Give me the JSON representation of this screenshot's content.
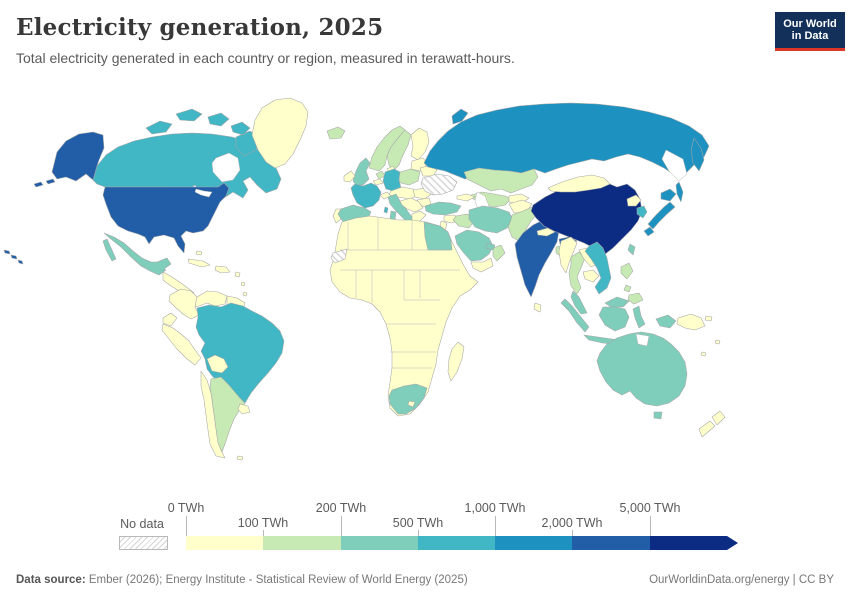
{
  "header": {
    "title": "Electricity generation, 2025",
    "subtitle": "Total electricity generated in each country or region, measured in terawatt-hours.",
    "logo": {
      "line1": "Our World",
      "line2": "in Data"
    },
    "logo_colors": {
      "navy": "#12305a",
      "red": "#dc3626"
    }
  },
  "legend": {
    "no_data_label": "No data",
    "unit": "TWh",
    "bins": [
      {
        "range": "0-100",
        "color": "#ffffcc"
      },
      {
        "range": "100-200",
        "color": "#c7e9b4"
      },
      {
        "range": "200-500",
        "color": "#7fcdbb"
      },
      {
        "range": "500-1000",
        "color": "#41b6c4"
      },
      {
        "range": "1000-2000",
        "color": "#1d91c0"
      },
      {
        "range": "2000-5000",
        "color": "#225ea8"
      },
      {
        "range": "5000-plus",
        "color": "#0c2c84"
      }
    ],
    "ticks": [
      {
        "label": "0 TWh",
        "row": "top"
      },
      {
        "label": "100 TWh",
        "row": "bottom"
      },
      {
        "label": "200 TWh",
        "row": "top"
      },
      {
        "label": "500 TWh",
        "row": "bottom"
      },
      {
        "label": "1,000 TWh",
        "row": "top"
      },
      {
        "label": "2,000 TWh",
        "row": "bottom"
      },
      {
        "label": "5,000 TWh",
        "row": "top"
      }
    ]
  },
  "footer": {
    "datasource_label": "Data source:",
    "datasource_text": " Ember (2026); Energy Institute - Statistical Review of World Energy (2025)",
    "right_text": "OurWorldinData.org/energy | CC BY"
  },
  "map": {
    "bin_colors": {
      "b1": "#ffffcc",
      "b2": "#c7e9b4",
      "b3": "#7fcdbb",
      "b4": "#41b6c4",
      "b5": "#1d91c0",
      "b6": "#225ea8",
      "b7": "#0c2c84"
    },
    "regions": {
      "usa": "b6",
      "alaska": "b6",
      "aleutians": "b6",
      "hawaii": "b6",
      "canada": "b4",
      "greenland": "b1",
      "mexico": "b3",
      "central-america": "b1",
      "cuba": "b1",
      "hispaniola": "b1",
      "caribbean": "b1",
      "bahamas": "b1",
      "colombia": "b1",
      "venezuela": "b1",
      "guyanas": "b1",
      "ecuador": "b1",
      "peru": "b1",
      "brazil": "b4",
      "bolivia": "b1",
      "paraguay": "b1",
      "chile": "b1",
      "argentina": "b2",
      "uruguay": "b1",
      "falklands": "b1",
      "iceland": "b2",
      "norway": "b2",
      "sweden": "b2",
      "finland": "b1",
      "denmark": "b1",
      "baltics": "b1",
      "uk": "b3",
      "ireland": "b1",
      "netherlands": "b2",
      "belgium": "b1",
      "germany": "b4",
      "poland": "b2",
      "central-europe": "b1",
      "switzerland": "b1",
      "france": "b4",
      "corsica": "b4",
      "spain": "b3",
      "portugal": "b1",
      "italy": "b3",
      "balkans": "b1",
      "greece": "b1",
      "romania": "b1",
      "bulgaria": "b1",
      "belarus": "b1",
      "ukraine": "nodata",
      "russia": "b5",
      "kazakhstan": "b2",
      "central-asia": "b2",
      "kyrgyz-tajik": "b1",
      "caucasus": "b1",
      "turkey": "b3",
      "syria": "b1",
      "levant": "b1",
      "iraq": "b2",
      "iran": "b3",
      "saudi-arabia": "b3",
      "yemen": "b1",
      "oman": "b2",
      "uae": "b3",
      "egypt": "b3",
      "africa": "b1",
      "western-sahara": "nodata",
      "south-africa": "b3",
      "lesotho": "b1",
      "madagascar": "b1",
      "afghanistan": "b1",
      "pakistan": "b2",
      "india": "b6",
      "nepal": "b1",
      "bangladesh": "b2",
      "sri-lanka": "b1",
      "china": "b7",
      "mongolia": "b1",
      "hainan": "b7",
      "taiwan": "b3",
      "north-korea": "b1",
      "south-korea": "b4",
      "japan": "b5",
      "myanmar": "b1",
      "thailand": "b2",
      "laos": "b1",
      "cambodia": "b1",
      "vietnam": "b4",
      "malaysia": "b3",
      "indonesia": "b3",
      "philippines": "b2",
      "papua-new-guinea": "b1",
      "australia": "b3",
      "tasmania": "b3",
      "new-zealand": "b1",
      "pacific-islands": "b1"
    }
  },
  "chart_data": {
    "type": "choropleth",
    "title": "Electricity generation, 2025",
    "unit": "TWh",
    "legend_bins": [
      {
        "label": "0-100 TWh",
        "color": "#ffffcc"
      },
      {
        "label": "100-200 TWh",
        "color": "#c7e9b4"
      },
      {
        "label": "200-500 TWh",
        "color": "#7fcdbb"
      },
      {
        "label": "500-1,000 TWh",
        "color": "#41b6c4"
      },
      {
        "label": "1,000-2,000 TWh",
        "color": "#1d91c0"
      },
      {
        "label": "2,000-5,000 TWh",
        "color": "#225ea8"
      },
      {
        "label": "5,000+ TWh",
        "color": "#0c2c84"
      },
      {
        "label": "No data",
        "color": "hatched"
      }
    ],
    "regions": [
      {
        "name": "China",
        "bin": "5,000+ TWh"
      },
      {
        "name": "United States",
        "bin": "2,000-5,000 TWh"
      },
      {
        "name": "India",
        "bin": "2,000-5,000 TWh"
      },
      {
        "name": "Russia",
        "bin": "1,000-2,000 TWh"
      },
      {
        "name": "Japan",
        "bin": "1,000-2,000 TWh"
      },
      {
        "name": "Canada",
        "bin": "500-1,000 TWh"
      },
      {
        "name": "Brazil",
        "bin": "500-1,000 TWh"
      },
      {
        "name": "France",
        "bin": "500-1,000 TWh"
      },
      {
        "name": "Germany",
        "bin": "500-1,000 TWh"
      },
      {
        "name": "South Korea",
        "bin": "500-1,000 TWh"
      },
      {
        "name": "Vietnam",
        "bin": "500-1,000 TWh"
      },
      {
        "name": "Mexico",
        "bin": "200-500 TWh"
      },
      {
        "name": "United Kingdom",
        "bin": "200-500 TWh"
      },
      {
        "name": "Spain",
        "bin": "200-500 TWh"
      },
      {
        "name": "Italy",
        "bin": "200-500 TWh"
      },
      {
        "name": "Turkey",
        "bin": "200-500 TWh"
      },
      {
        "name": "Iran",
        "bin": "200-500 TWh"
      },
      {
        "name": "Saudi Arabia",
        "bin": "200-500 TWh"
      },
      {
        "name": "Egypt",
        "bin": "200-500 TWh"
      },
      {
        "name": "South Africa",
        "bin": "200-500 TWh"
      },
      {
        "name": "Australia",
        "bin": "200-500 TWh"
      },
      {
        "name": "Indonesia",
        "bin": "200-500 TWh"
      },
      {
        "name": "Malaysia",
        "bin": "200-500 TWh"
      },
      {
        "name": "Taiwan",
        "bin": "200-500 TWh"
      },
      {
        "name": "United Arab Emirates",
        "bin": "200-500 TWh"
      },
      {
        "name": "Argentina",
        "bin": "100-200 TWh"
      },
      {
        "name": "Norway",
        "bin": "100-200 TWh"
      },
      {
        "name": "Sweden",
        "bin": "100-200 TWh"
      },
      {
        "name": "Poland",
        "bin": "100-200 TWh"
      },
      {
        "name": "Netherlands",
        "bin": "100-200 TWh"
      },
      {
        "name": "Kazakhstan",
        "bin": "100-200 TWh"
      },
      {
        "name": "Uzbekistan",
        "bin": "100-200 TWh"
      },
      {
        "name": "Pakistan",
        "bin": "100-200 TWh"
      },
      {
        "name": "Bangladesh",
        "bin": "100-200 TWh"
      },
      {
        "name": "Thailand",
        "bin": "100-200 TWh"
      },
      {
        "name": "Philippines",
        "bin": "100-200 TWh"
      },
      {
        "name": "Iraq",
        "bin": "100-200 TWh"
      },
      {
        "name": "Iceland",
        "bin": "100-200 TWh"
      },
      {
        "name": "Most of Africa, Central America and Andean South America",
        "bin": "0-100 TWh"
      },
      {
        "name": "Ukraine",
        "bin": "No data"
      },
      {
        "name": "Western Sahara",
        "bin": "No data"
      }
    ]
  }
}
